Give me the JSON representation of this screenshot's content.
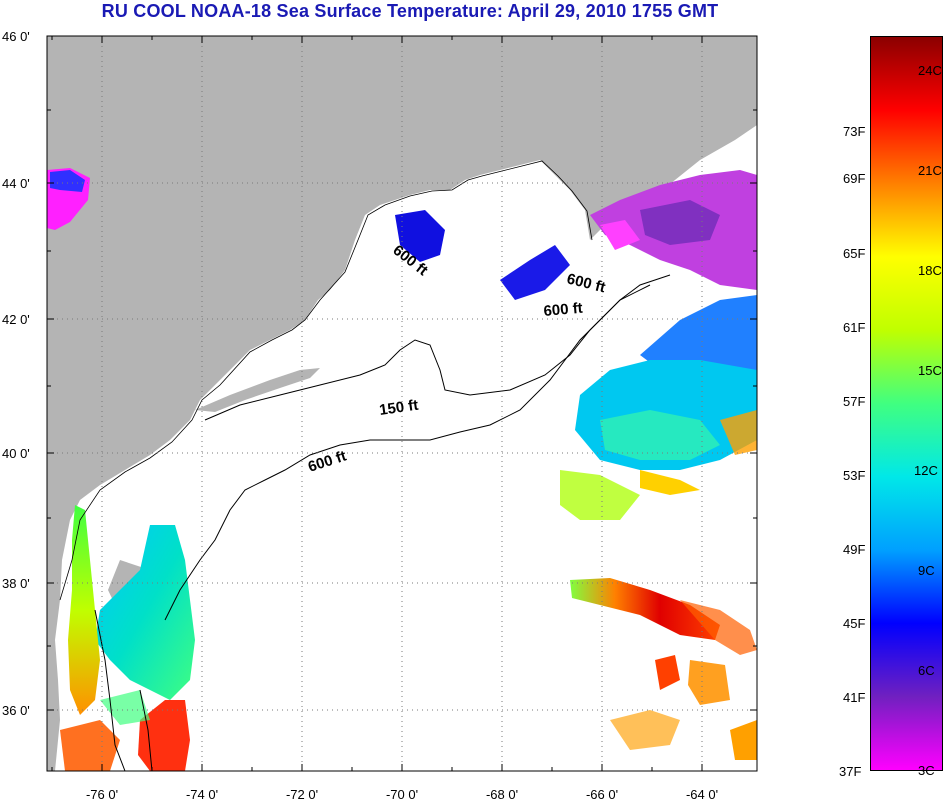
{
  "title": "RU COOL  NOAA-18  Sea Surface Temperature:  April 29, 2010 1755 GMT",
  "map": {
    "lon_range": [
      -77,
      -63
    ],
    "lat_range": [
      35,
      46
    ],
    "lat_ticks": [
      "46 0'",
      "44 0'",
      "42 0'",
      "40 0'",
      "38 0'",
      "36 0'"
    ],
    "lon_ticks": [
      "-76 0'",
      "-74 0'",
      "-72 0'",
      "-70 0'",
      "-68 0'",
      "-66 0'",
      "-64 0'"
    ],
    "grid": "dotted",
    "land_color": "#b4b4b4",
    "contour_labels": [
      "600 ft",
      "600 ft",
      "600 ft",
      "150 ft",
      "600 ft"
    ]
  },
  "colorbar": {
    "celsius_labels": [
      "24C",
      "21C",
      "18C",
      "15C",
      "12C",
      "9C",
      "6C",
      "3C"
    ],
    "fahrenheit_labels": [
      "73F",
      "69F",
      "65F",
      "61F",
      "57F",
      "53F",
      "49F",
      "45F",
      "41F",
      "37F"
    ],
    "colors": [
      "#ff00ff",
      "#7020c0",
      "#0000ff",
      "#00a0ff",
      "#00e8e8",
      "#40ff80",
      "#c0ff00",
      "#ffff00",
      "#ff8000",
      "#ff0000",
      "#8b0000"
    ]
  }
}
